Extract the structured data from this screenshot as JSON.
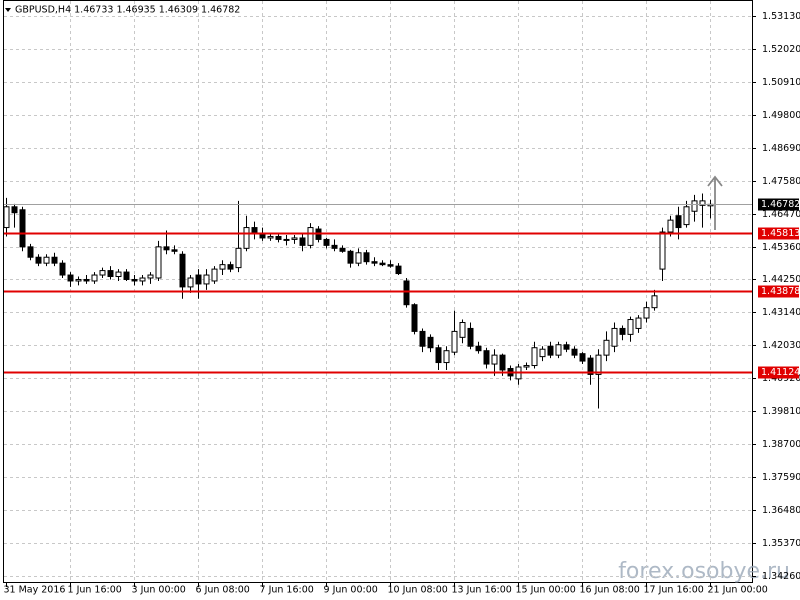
{
  "chart_data": {
    "type": "candlestick",
    "title": "GBPUSD,H4 1.46733 1.46935 1.46309 1.46782",
    "watermark": "forex.osobye.ru",
    "open": [
      1.46,
      1.467,
      1.466,
      1.4535,
      1.45,
      1.448,
      1.45,
      1.448,
      1.444,
      1.442,
      1.4425,
      1.442,
      1.444,
      1.4455,
      1.4435,
      1.445,
      1.4425,
      1.442,
      1.443,
      1.443,
      1.4535,
      1.4525,
      1.451,
      1.44,
      1.444,
      1.441,
      1.442,
      1.446,
      1.4475,
      1.4465,
      1.453,
      1.46,
      1.458,
      1.4565,
      1.457,
      1.456,
      1.456,
      1.4565,
      1.454,
      1.4595,
      1.456,
      1.454,
      1.453,
      1.452,
      1.448,
      1.4515,
      1.4485,
      1.448,
      1.4475,
      1.447,
      1.442,
      1.434,
      1.425,
      1.423,
      1.4195,
      1.4145,
      1.418,
      1.423,
      1.426,
      1.42,
      1.4185,
      1.414,
      1.417,
      1.4125,
      1.409,
      1.413,
      1.4135,
      1.4165,
      1.42,
      1.417,
      1.4205,
      1.419,
      1.4175,
      1.416,
      1.4105,
      1.417,
      1.42,
      1.426,
      1.424,
      1.426,
      1.4295,
      1.433,
      1.446,
      1.4585,
      1.464,
      1.461,
      1.4655,
      1.4675,
      1.46733
    ],
    "high": [
      1.47,
      1.468,
      1.467,
      1.4545,
      1.451,
      1.451,
      1.4515,
      1.449,
      1.445,
      1.4435,
      1.444,
      1.445,
      1.4465,
      1.447,
      1.446,
      1.446,
      1.444,
      1.444,
      1.445,
      1.4555,
      1.459,
      1.454,
      1.452,
      1.444,
      1.446,
      1.446,
      1.447,
      1.449,
      1.4485,
      1.469,
      1.464,
      1.462,
      1.46,
      1.458,
      1.458,
      1.4575,
      1.4575,
      1.458,
      1.4615,
      1.4605,
      1.4565,
      1.456,
      1.454,
      1.4525,
      1.453,
      1.4525,
      1.45,
      1.449,
      1.449,
      1.448,
      1.443,
      1.4345,
      1.426,
      1.424,
      1.4205,
      1.42,
      1.432,
      1.429,
      1.428,
      1.4215,
      1.4195,
      1.419,
      1.4175,
      1.4135,
      1.414,
      1.4145,
      1.4215,
      1.42,
      1.4215,
      1.4215,
      1.4215,
      1.42,
      1.418,
      1.417,
      1.419,
      1.425,
      1.428,
      1.427,
      1.43,
      1.4305,
      1.435,
      1.439,
      1.46,
      1.464,
      1.467,
      1.469,
      1.471,
      1.4715,
      1.46935
    ],
    "low": [
      1.457,
      1.46,
      1.452,
      1.449,
      1.447,
      1.447,
      1.447,
      1.443,
      1.44,
      1.4405,
      1.441,
      1.441,
      1.443,
      1.4425,
      1.442,
      1.442,
      1.4405,
      1.4405,
      1.441,
      1.442,
      1.451,
      1.451,
      1.436,
      1.438,
      1.436,
      1.439,
      1.441,
      1.444,
      1.445,
      1.445,
      1.452,
      1.456,
      1.4555,
      1.4555,
      1.455,
      1.454,
      1.4545,
      1.452,
      1.453,
      1.455,
      1.453,
      1.452,
      1.4515,
      1.4465,
      1.447,
      1.4475,
      1.447,
      1.447,
      1.4465,
      1.444,
      1.433,
      1.424,
      1.418,
      1.418,
      1.412,
      1.412,
      1.417,
      1.421,
      1.419,
      1.4175,
      1.4125,
      1.41,
      1.41,
      1.4085,
      1.407,
      1.412,
      1.4125,
      1.415,
      1.416,
      1.416,
      1.418,
      1.416,
      1.414,
      1.407,
      1.399,
      1.415,
      1.418,
      1.422,
      1.4215,
      1.4245,
      1.428,
      1.432,
      1.442,
      1.457,
      1.456,
      1.46,
      1.462,
      1.46,
      1.46309
    ],
    "close": [
      1.467,
      1.465,
      1.4535,
      1.45,
      1.448,
      1.45,
      1.448,
      1.444,
      1.442,
      1.4425,
      1.442,
      1.444,
      1.4455,
      1.4435,
      1.445,
      1.4425,
      1.442,
      1.443,
      1.444,
      1.4535,
      1.4525,
      1.452,
      1.44,
      1.443,
      1.441,
      1.444,
      1.446,
      1.4475,
      1.446,
      1.453,
      1.46,
      1.458,
      1.4565,
      1.457,
      1.456,
      1.456,
      1.4565,
      1.454,
      1.46,
      1.456,
      1.454,
      1.453,
      1.452,
      1.448,
      1.4515,
      1.4485,
      1.448,
      1.4475,
      1.447,
      1.4445,
      1.434,
      1.425,
      1.42,
      1.4195,
      1.4145,
      1.4185,
      1.425,
      1.428,
      1.42,
      1.4185,
      1.414,
      1.417,
      1.412,
      1.41,
      1.413,
      1.4135,
      1.4195,
      1.419,
      1.417,
      1.4205,
      1.419,
      1.417,
      1.415,
      1.4105,
      1.417,
      1.422,
      1.426,
      1.424,
      1.429,
      1.4295,
      1.433,
      1.437,
      1.4585,
      1.4625,
      1.46,
      1.467,
      1.469,
      1.469,
      1.46782
    ],
    "ylim": [
      1.3402,
      1.5367
    ],
    "yticks": [
      {
        "value": 1.5313,
        "label": "1.53130"
      },
      {
        "value": 1.5202,
        "label": "1.52020"
      },
      {
        "value": 1.5091,
        "label": "1.50910"
      },
      {
        "value": 1.498,
        "label": "1.49800"
      },
      {
        "value": 1.4869,
        "label": "1.48690"
      },
      {
        "value": 1.4758,
        "label": "1.47580"
      },
      {
        "value": 1.4647,
        "label": "1.46470"
      },
      {
        "value": 1.4536,
        "label": "1.45360"
      },
      {
        "value": 1.4425,
        "label": "1.44250"
      },
      {
        "value": 1.4314,
        "label": "1.43140"
      },
      {
        "value": 1.4203,
        "label": "1.42030"
      },
      {
        "value": 1.4092,
        "label": "1.40920"
      },
      {
        "value": 1.3981,
        "label": "1.39810"
      },
      {
        "value": 1.387,
        "label": "1.38700"
      },
      {
        "value": 1.3759,
        "label": "1.37590"
      },
      {
        "value": 1.3648,
        "label": "1.36480"
      },
      {
        "value": 1.3537,
        "label": "1.35370"
      },
      {
        "value": 1.3426,
        "label": "1.34260"
      }
    ],
    "xticks": [
      {
        "value": 0,
        "label": "31 May 2016"
      },
      {
        "value": 8,
        "label": "1 Jun 16:00"
      },
      {
        "value": 16,
        "label": "3 Jun 00:00"
      },
      {
        "value": 24,
        "label": "6 Jun 08:00"
      },
      {
        "value": 32,
        "label": "7 Jun 16:00"
      },
      {
        "value": 40,
        "label": "9 Jun 00:00"
      },
      {
        "value": 48,
        "label": "10 Jun 08:00"
      },
      {
        "value": 56,
        "label": "13 Jun 16:00"
      },
      {
        "value": 64,
        "label": "15 Jun 00:00"
      },
      {
        "value": 72,
        "label": "16 Jun 08:00"
      },
      {
        "value": 80,
        "label": "17 Jun 16:00"
      },
      {
        "value": 88,
        "label": "21 Jun 00:00"
      }
    ],
    "grid": true,
    "levels": [
      {
        "value": 1.45813,
        "color": "#e00000"
      },
      {
        "value": 1.43878,
        "color": "#e00000"
      },
      {
        "value": 1.41124,
        "color": "#e00000"
      }
    ],
    "last_price": {
      "value": 1.46782,
      "color": "#a0a0a0"
    }
  }
}
